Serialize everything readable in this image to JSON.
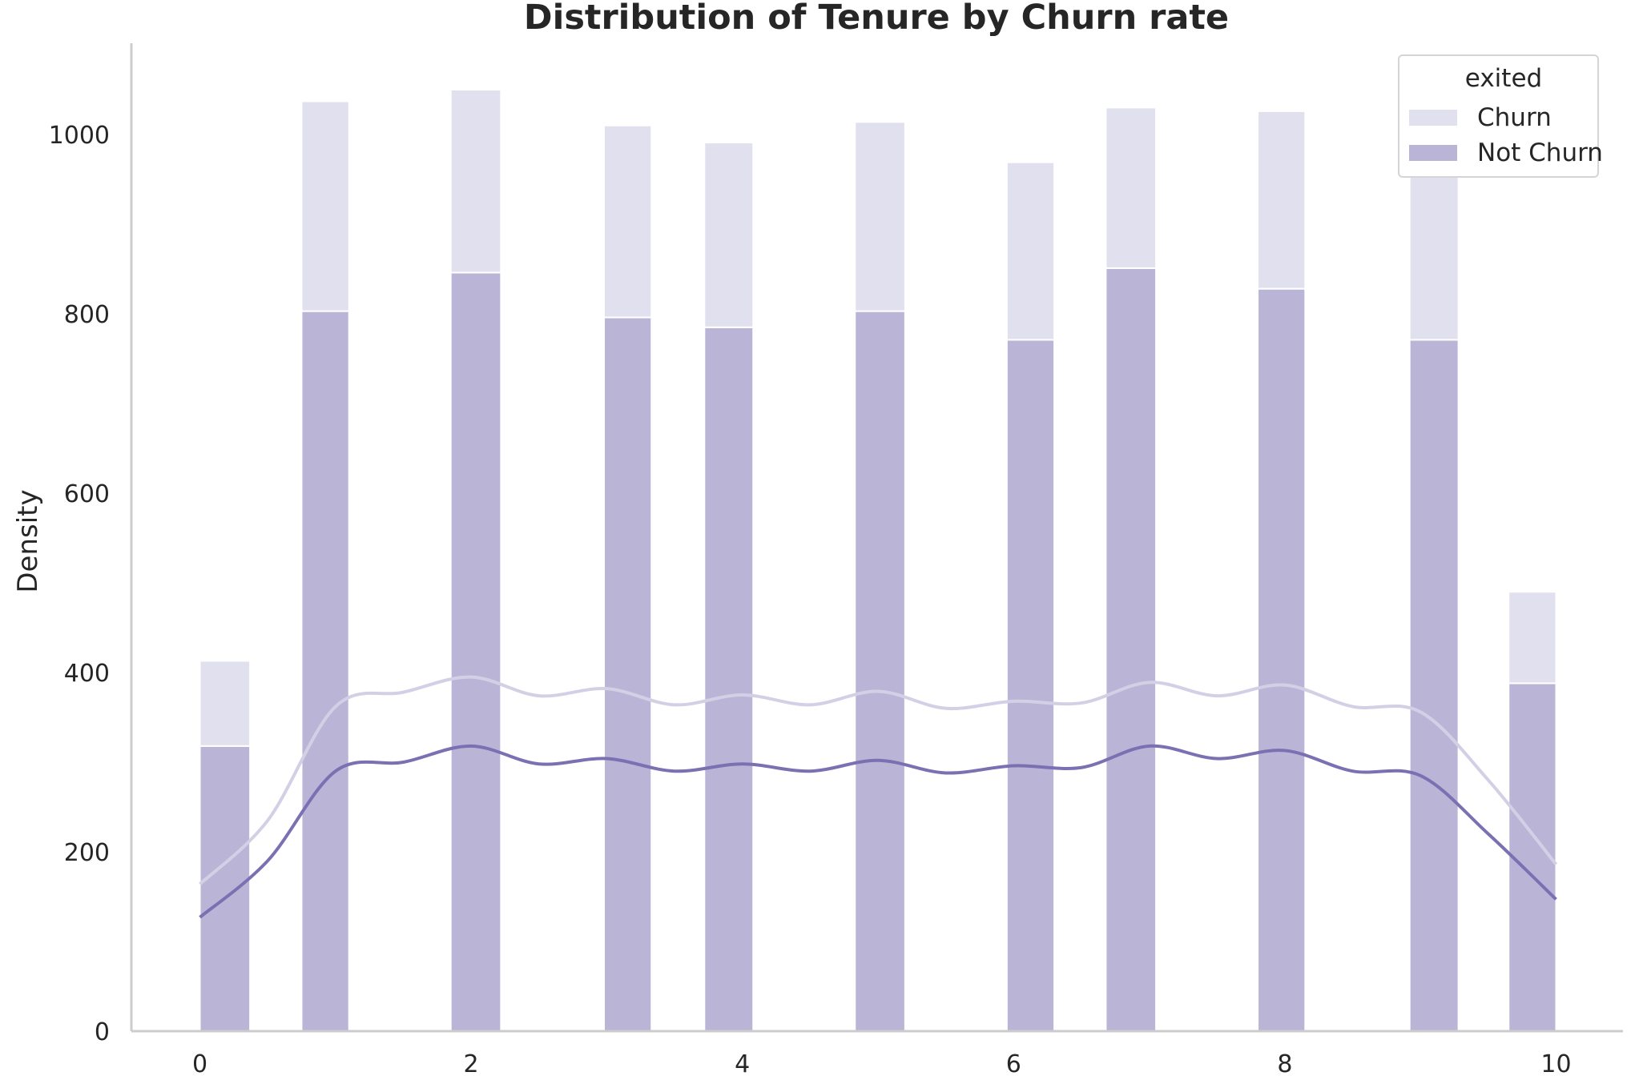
{
  "chart_data": {
    "type": "bar",
    "title": "Distribution of Tenure by Churn rate",
    "xlabel": "",
    "ylabel": "Density",
    "xlim": [
      -0.5,
      10.5
    ],
    "ylim": [
      0,
      1100
    ],
    "x_ticks": [
      0,
      2,
      4,
      6,
      8,
      10
    ],
    "y_ticks": [
      0,
      200,
      400,
      600,
      800,
      1000
    ],
    "stacked": true,
    "grid": false,
    "legend": {
      "title": "exited",
      "position": "top-right"
    },
    "bins": [
      {
        "x0": 0.0,
        "x1": 0.37
      },
      {
        "x0": 0.75,
        "x1": 1.1
      },
      {
        "x0": 1.85,
        "x1": 2.22
      },
      {
        "x0": 2.98,
        "x1": 3.33
      },
      {
        "x0": 3.72,
        "x1": 4.08
      },
      {
        "x0": 4.83,
        "x1": 5.2
      },
      {
        "x0": 5.95,
        "x1": 6.3
      },
      {
        "x0": 6.68,
        "x1": 7.05
      },
      {
        "x0": 7.8,
        "x1": 8.15
      },
      {
        "x0": 8.92,
        "x1": 9.28
      },
      {
        "x0": 9.65,
        "x1": 10.0
      }
    ],
    "series": [
      {
        "name": "Not Churn",
        "color": "#bab5d7",
        "values": [
          318,
          803,
          846,
          796,
          785,
          803,
          771,
          851,
          828,
          771,
          388
        ],
        "kde": {
          "color": "#7b70b2",
          "x": [
            0,
            0.5,
            1.0,
            1.5,
            2.0,
            2.5,
            3.0,
            3.5,
            4.0,
            4.5,
            5.0,
            5.5,
            6.0,
            6.5,
            7.0,
            7.5,
            8.0,
            8.5,
            9.0,
            9.5,
            10.0
          ],
          "y": [
            127,
            190,
            290,
            300,
            318,
            298,
            304,
            290,
            298,
            290,
            302,
            288,
            296,
            294,
            318,
            304,
            313,
            290,
            285,
            220,
            147
          ]
        }
      },
      {
        "name": "Churn",
        "color": "#e1e0ee",
        "values": [
          95,
          234,
          204,
          214,
          206,
          211,
          198,
          179,
          198,
          200,
          102
        ],
        "kde": {
          "color": "#d3d0e6",
          "x": [
            0,
            0.5,
            1.0,
            1.5,
            2.0,
            2.5,
            3.0,
            3.5,
            4.0,
            4.5,
            5.0,
            5.5,
            6.0,
            6.5,
            7.0,
            7.5,
            8.0,
            8.5,
            9.0,
            9.5,
            10.0
          ],
          "y": [
            164,
            235,
            362,
            378,
            395,
            374,
            382,
            364,
            375,
            364,
            379,
            360,
            368,
            366,
            389,
            374,
            386,
            362,
            356,
            280,
            186
          ]
        }
      }
    ]
  }
}
